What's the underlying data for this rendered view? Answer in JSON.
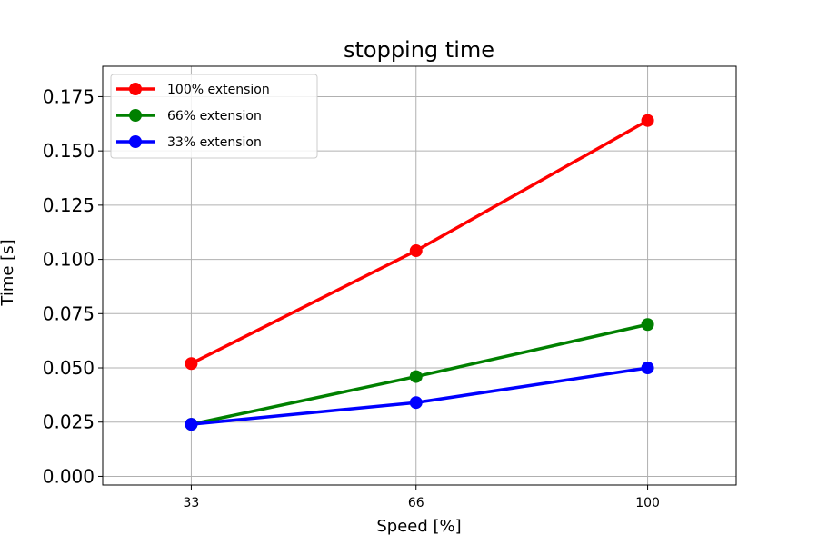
{
  "chart_data": {
    "type": "line",
    "title": "stopping time",
    "xlabel": "Speed [%]",
    "ylabel": "Time [s]",
    "categories": [
      "33",
      "66",
      "100"
    ],
    "x": [
      33,
      66,
      100
    ],
    "xlim": [
      20,
      113
    ],
    "ylim": [
      -0.004,
      0.189
    ],
    "yticks": [
      0.0,
      0.025,
      0.05,
      0.075,
      0.1,
      0.125,
      0.15,
      0.175
    ],
    "ytick_labels": [
      "0.000",
      "0.025",
      "0.050",
      "0.075",
      "0.100",
      "0.125",
      "0.150",
      "0.175"
    ],
    "grid": true,
    "legend_position": "top-left",
    "series": [
      {
        "name": "100% extension",
        "color": "#ff0000",
        "values": [
          0.052,
          0.104,
          0.164
        ]
      },
      {
        "name": "66% extension",
        "color": "#008000",
        "values": [
          0.024,
          0.046,
          0.07
        ]
      },
      {
        "name": "33% extension",
        "color": "#0000ff",
        "values": [
          0.024,
          0.034,
          0.05
        ]
      }
    ]
  }
}
